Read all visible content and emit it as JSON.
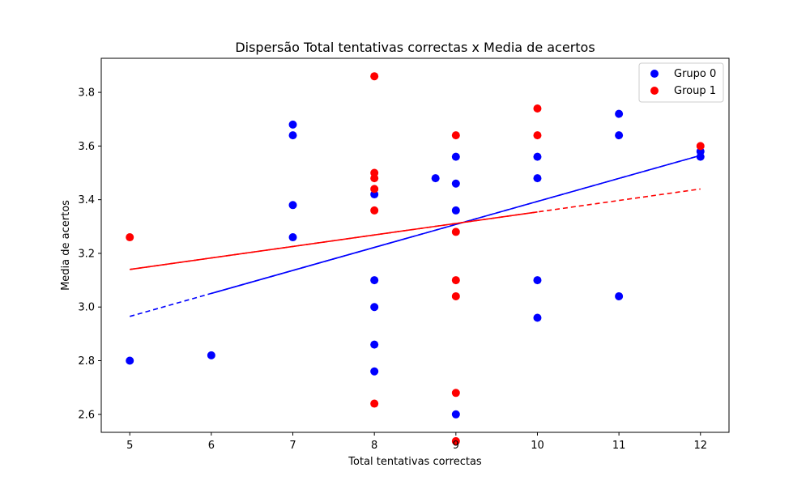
{
  "chart_data": {
    "type": "scatter",
    "title": "Dispersão Total tentativas correctas x Media de acertos",
    "xlabel": "Total tentativas correctas",
    "ylabel": "Media de acertos",
    "xlim": [
      4.65,
      12.35
    ],
    "ylim": [
      2.533,
      3.927
    ],
    "xticks": [
      5,
      6,
      7,
      8,
      9,
      10,
      11,
      12
    ],
    "yticks": [
      2.6,
      2.8,
      3.0,
      3.2,
      3.4,
      3.6,
      3.8
    ],
    "grid": false,
    "legend": "top-right",
    "series": [
      {
        "name": "Grupo 0",
        "color": "#0000ff",
        "points": [
          [
            5,
            2.8
          ],
          [
            6,
            2.82
          ],
          [
            7,
            3.68
          ],
          [
            7,
            3.64
          ],
          [
            7,
            3.38
          ],
          [
            7,
            3.26
          ],
          [
            8,
            3.42
          ],
          [
            8,
            3.1
          ],
          [
            8,
            3.0
          ],
          [
            8,
            2.86
          ],
          [
            8,
            2.76
          ],
          [
            8.75,
            3.48
          ],
          [
            9,
            3.56
          ],
          [
            9,
            3.46
          ],
          [
            9,
            3.36
          ],
          [
            9,
            2.6
          ],
          [
            10,
            3.56
          ],
          [
            10,
            3.48
          ],
          [
            10,
            3.1
          ],
          [
            10,
            2.96
          ],
          [
            11,
            3.72
          ],
          [
            11,
            3.64
          ],
          [
            11,
            3.04
          ],
          [
            12,
            3.58
          ],
          [
            12,
            3.56
          ]
        ],
        "trend": {
          "x_start": 5,
          "y_start": 2.965,
          "x_end": 12,
          "y_end": 3.565,
          "solid_from_x": 6
        }
      },
      {
        "name": "Group 1",
        "color": "#ff0000",
        "points": [
          [
            5,
            3.26
          ],
          [
            8,
            3.86
          ],
          [
            8,
            3.5
          ],
          [
            8,
            3.48
          ],
          [
            8,
            3.44
          ],
          [
            8,
            3.36
          ],
          [
            8,
            2.64
          ],
          [
            9,
            3.64
          ],
          [
            9,
            3.28
          ],
          [
            9,
            3.1
          ],
          [
            9,
            3.04
          ],
          [
            9,
            2.68
          ],
          [
            9,
            2.5
          ],
          [
            10,
            3.74
          ],
          [
            10,
            3.64
          ],
          [
            12,
            3.6
          ]
        ],
        "trend": {
          "x_start": 5,
          "y_start": 3.14,
          "x_end": 12,
          "y_end": 3.44,
          "solid_to_x": 10
        }
      }
    ]
  }
}
